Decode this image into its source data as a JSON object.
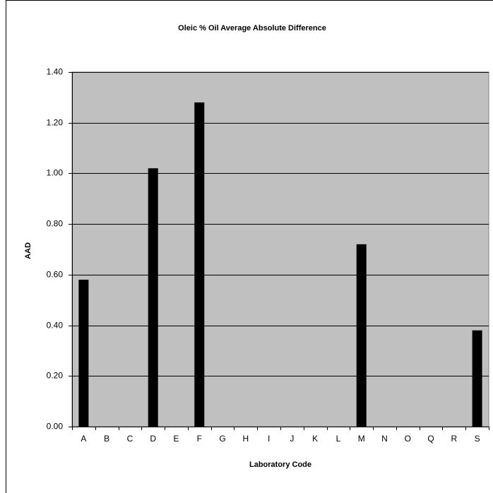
{
  "chart_data": {
    "type": "bar",
    "title": "Oleic % Oil Average Absolute Difference",
    "x_label": "Laboratory Code",
    "y_label": "AAD",
    "categories": [
      "A",
      "B",
      "C",
      "D",
      "E",
      "F",
      "G",
      "H",
      "I",
      "J",
      "K",
      "L",
      "M",
      "N",
      "O",
      "Q",
      "R",
      "S"
    ],
    "values": [
      0.58,
      null,
      null,
      1.02,
      null,
      1.28,
      null,
      null,
      null,
      null,
      null,
      null,
      0.72,
      null,
      null,
      null,
      null,
      0.38
    ],
    "color": "#000000",
    "background": "#c0c0c0",
    "ylim": [
      0,
      1.4
    ],
    "yticks": [
      {
        "value": 0,
        "label": "0.00"
      },
      {
        "value": 0.2,
        "label": "0.20"
      },
      {
        "value": 0.4,
        "label": "0.40"
      },
      {
        "value": 0.6,
        "label": "0.60"
      },
      {
        "value": 0.8,
        "label": "0.80"
      },
      {
        "value": 1,
        "label": "1.00"
      },
      {
        "value": 1.2,
        "label": "1.20"
      },
      {
        "value": 1.4,
        "label": "1.40"
      }
    ],
    "grid": true
  }
}
